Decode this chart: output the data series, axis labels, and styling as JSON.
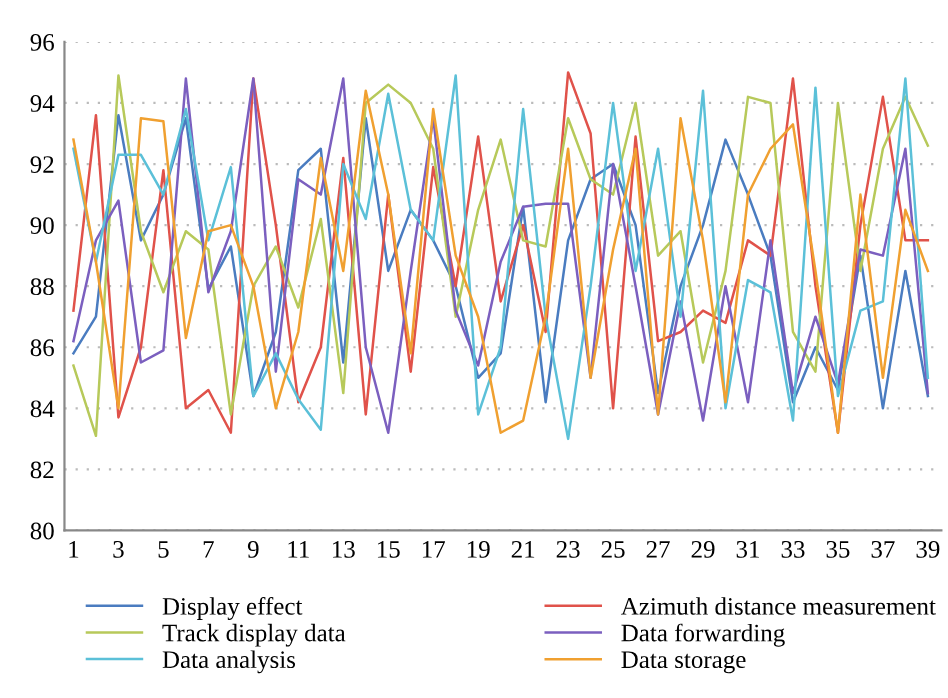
{
  "chart_data": {
    "type": "line",
    "x": [
      1,
      2,
      3,
      4,
      5,
      6,
      7,
      8,
      9,
      10,
      11,
      12,
      13,
      14,
      15,
      16,
      17,
      18,
      19,
      20,
      21,
      22,
      23,
      24,
      25,
      26,
      27,
      28,
      29,
      30,
      31,
      32,
      33,
      34,
      35,
      36,
      37,
      38,
      39
    ],
    "xlim": [
      0.6,
      39.6
    ],
    "xticks": [
      1,
      3,
      5,
      7,
      9,
      11,
      13,
      15,
      17,
      19,
      21,
      23,
      25,
      27,
      29,
      31,
      33,
      35,
      37,
      39
    ],
    "ylim": [
      80,
      96
    ],
    "yticks": [
      80,
      82,
      84,
      86,
      88,
      90,
      92,
      94,
      96
    ],
    "grid": "y",
    "legend": "bottom",
    "marker": "none",
    "line_style": "solid",
    "series": [
      {
        "name": "Display effect",
        "color": "#4a7cc0",
        "values": [
          85.8,
          87,
          93.6,
          89.5,
          91,
          93.5,
          87.9,
          89.3,
          84.4,
          86.5,
          91.8,
          92.5,
          85.5,
          93.5,
          88.5,
          90.5,
          89.5,
          88,
          85,
          85.8,
          90.6,
          84.2,
          89.5,
          91.5,
          92,
          90,
          84.5,
          88,
          90,
          92.8,
          91,
          89,
          84.2,
          86,
          84.6,
          89,
          84,
          88.5,
          84.4
        ]
      },
      {
        "name": "Azimuth distance measurement",
        "color": "#e0524a",
        "values": [
          87.2,
          93.6,
          83.7,
          86,
          91.8,
          84,
          84.6,
          83.2,
          94.8,
          90,
          84.2,
          86,
          92.2,
          83.8,
          91,
          85.2,
          91.9,
          88,
          92.9,
          87.5,
          90,
          86.5,
          95,
          93,
          84,
          92.9,
          86.2,
          86.5,
          87.2,
          86.8,
          89.5,
          89,
          94.8,
          88,
          83.2,
          90,
          94.2,
          89.5,
          89.5
        ]
      },
      {
        "name": "Track display data",
        "color": "#b7c95a",
        "values": [
          85.4,
          83.1,
          94.9,
          89.8,
          87.8,
          89.8,
          89.2,
          83.8,
          88,
          89.3,
          87.3,
          90.2,
          84.5,
          94,
          94.6,
          94,
          92.5,
          87,
          90.5,
          92.8,
          89.5,
          89.3,
          93.5,
          91.5,
          91,
          94,
          89,
          89.8,
          85.5,
          88.5,
          94.2,
          94,
          86.5,
          85.2,
          94,
          88.5,
          92.5,
          94.2,
          92.6
        ]
      },
      {
        "name": "Data forwarding",
        "color": "#7b5fbf",
        "values": [
          86.2,
          89.5,
          90.8,
          85.5,
          85.9,
          94.8,
          87.8,
          89.8,
          94.8,
          85.2,
          91.5,
          91,
          94.8,
          86,
          83.2,
          88.5,
          93.5,
          87.2,
          85.4,
          88.8,
          90.6,
          90.7,
          90.7,
          85,
          92,
          88,
          83.8,
          87.5,
          83.6,
          88,
          84.2,
          89.5,
          84.5,
          87,
          84.8,
          89.2,
          89,
          92.5,
          84.5
        ]
      },
      {
        "name": "Data analysis",
        "color": "#5bc0d8",
        "values": [
          92.5,
          88.8,
          92.3,
          92.3,
          91,
          93.8,
          89.5,
          91.9,
          84.4,
          85.8,
          84.3,
          83.3,
          92,
          90.2,
          94.3,
          90.5,
          89.5,
          94.9,
          83.8,
          86,
          93.8,
          87,
          83,
          88,
          94,
          88.5,
          92.5,
          87,
          94.4,
          84,
          88.2,
          87.8,
          83.6,
          94.5,
          84.4,
          87.2,
          87.5,
          94.8,
          85
        ]
      },
      {
        "name": "Data storage",
        "color": "#f0a030",
        "values": [
          92.8,
          88.8,
          84,
          93.5,
          93.4,
          86.3,
          89.8,
          90,
          88,
          84,
          86.5,
          92.2,
          88.5,
          94.4,
          91,
          85.8,
          93.8,
          89,
          87,
          83.2,
          83.6,
          87,
          92.5,
          85,
          89.2,
          92.5,
          83.8,
          93.5,
          89.5,
          84.2,
          91,
          92.5,
          93.3,
          88.5,
          83.2,
          91,
          85,
          90.5,
          88.5
        ]
      }
    ]
  }
}
